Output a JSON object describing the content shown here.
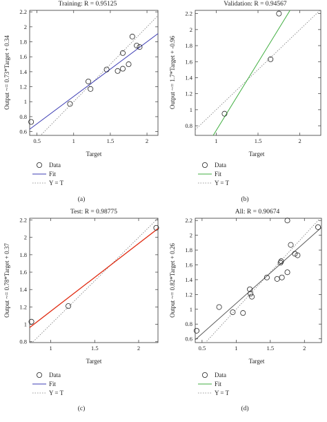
{
  "colors": {
    "training_fit": "#3b3bb3",
    "validation_fit": "#3fae3f",
    "test_fit": "#e02a10",
    "all_fit": "#555555",
    "identity": "#777777",
    "legend_fit_default": "#3b3bb3"
  },
  "chart_data": [
    {
      "id": "training",
      "type": "scatter",
      "caption": "(a)",
      "title": "Training: R = 0.95125",
      "xlabel": "Target",
      "ylabel": "Output ~= 0.73*Target + 0.34",
      "xlim": [
        0.4,
        2.15
      ],
      "ylim": [
        0.55,
        2.22
      ],
      "xticks": [
        0.5,
        1,
        1.5,
        2
      ],
      "xtick_labels": [
        "0.5",
        "1",
        "1.5",
        "2"
      ],
      "yticks": [
        0.6,
        0.8,
        1,
        1.2,
        1.4,
        1.6,
        1.8,
        2,
        2.2
      ],
      "ytick_labels": [
        "0.6",
        "0.8",
        "1",
        "1.2",
        "1.4",
        "1.6",
        "1.8",
        "2",
        "2.2"
      ],
      "fit": {
        "slope": 0.73,
        "intercept": 0.34,
        "color_key": "training_fit"
      },
      "points": [
        {
          "x": 0.42,
          "y": 0.73
        },
        {
          "x": 0.95,
          "y": 0.97
        },
        {
          "x": 1.2,
          "y": 1.27
        },
        {
          "x": 1.23,
          "y": 1.17
        },
        {
          "x": 1.45,
          "y": 1.43
        },
        {
          "x": 1.6,
          "y": 1.41
        },
        {
          "x": 1.67,
          "y": 1.44
        },
        {
          "x": 1.67,
          "y": 1.65
        },
        {
          "x": 1.75,
          "y": 1.5
        },
        {
          "x": 1.8,
          "y": 1.87
        },
        {
          "x": 1.86,
          "y": 1.75
        },
        {
          "x": 1.9,
          "y": 1.73
        }
      ],
      "legend": [
        {
          "symbol": "circle",
          "label": "Data"
        },
        {
          "symbol": "line",
          "color_key": "training_fit",
          "label": "Fit"
        },
        {
          "symbol": "dotted",
          "label": "Y = T"
        }
      ]
    },
    {
      "id": "validation",
      "type": "scatter",
      "caption": "(b)",
      "title": "Validation: R = 0.94567",
      "xlabel": "Target",
      "ylabel": "Output ~= 1.7*Target + -0.96",
      "xlim": [
        0.75,
        2.25
      ],
      "ylim": [
        0.68,
        2.24
      ],
      "xticks": [
        1,
        1.5,
        2
      ],
      "xtick_labels": [
        "1",
        "1.5",
        "2"
      ],
      "yticks": [
        0.8,
        1,
        1.2,
        1.4,
        1.6,
        1.8,
        2,
        2.2
      ],
      "ytick_labels": [
        "0.8",
        "1",
        "1.2",
        "1.4",
        "1.6",
        "1.8",
        "2",
        "2.2"
      ],
      "fit": {
        "slope": 1.7,
        "intercept": -0.96,
        "color_key": "validation_fit"
      },
      "points": [
        {
          "x": 1.1,
          "y": 0.95
        },
        {
          "x": 1.65,
          "y": 1.63
        },
        {
          "x": 1.75,
          "y": 2.2
        }
      ],
      "legend": [
        {
          "symbol": "circle",
          "label": "Data"
        },
        {
          "symbol": "line",
          "color_key": "validation_fit",
          "label": "Fit"
        },
        {
          "symbol": "dotted",
          "label": "Y = T"
        }
      ]
    },
    {
      "id": "test",
      "type": "scatter",
      "caption": "(c)",
      "title": "Test: R = 0.98775",
      "xlabel": "Target",
      "ylabel": "Output ~= 0.78*Target + 0.37",
      "xlim": [
        0.76,
        2.22
      ],
      "ylim": [
        0.79,
        2.22
      ],
      "xticks": [
        1,
        1.5,
        2
      ],
      "xtick_labels": [
        "1",
        "1.5",
        "2"
      ],
      "yticks": [
        0.8,
        1,
        1.2,
        1.4,
        1.6,
        1.8,
        2,
        2.2
      ],
      "ytick_labels": [
        "0.8",
        "1",
        "1.2",
        "1.4",
        "1.6",
        "1.8",
        "2",
        "2.2"
      ],
      "fit": {
        "slope": 0.78,
        "intercept": 0.37,
        "color_key": "test_fit"
      },
      "points": [
        {
          "x": 0.78,
          "y": 1.03
        },
        {
          "x": 1.2,
          "y": 1.21
        },
        {
          "x": 2.2,
          "y": 2.11
        }
      ],
      "legend": [
        {
          "symbol": "circle",
          "label": "Data"
        },
        {
          "symbol": "line",
          "color_key": "legend_fit_default",
          "label": "Fit"
        },
        {
          "symbol": "dotted",
          "label": "Y = T"
        }
      ]
    },
    {
      "id": "all",
      "type": "scatter",
      "caption": "(d)",
      "title": "All: R = 0.90674",
      "xlabel": "Target",
      "ylabel": "Output ~= 0.82*Target + 0.26",
      "xlim": [
        0.4,
        2.25
      ],
      "ylim": [
        0.55,
        2.23
      ],
      "xticks": [
        0.5,
        1,
        1.5,
        2
      ],
      "xtick_labels": [
        "0.5",
        "1",
        "1.5",
        "2"
      ],
      "yticks": [
        0.6,
        0.8,
        1,
        1.2,
        1.4,
        1.6,
        1.8,
        2,
        2.2
      ],
      "ytick_labels": [
        "0.6",
        "0.8",
        "1",
        "1.2",
        "1.4",
        "1.6",
        "1.8",
        "2",
        "2.2"
      ],
      "fit": {
        "slope": 0.82,
        "intercept": 0.26,
        "color_key": "all_fit"
      },
      "points": [
        {
          "x": 0.42,
          "y": 0.71
        },
        {
          "x": 0.75,
          "y": 1.03
        },
        {
          "x": 0.95,
          "y": 0.96
        },
        {
          "x": 1.1,
          "y": 0.95
        },
        {
          "x": 1.2,
          "y": 1.27
        },
        {
          "x": 1.21,
          "y": 1.21
        },
        {
          "x": 1.23,
          "y": 1.17
        },
        {
          "x": 1.45,
          "y": 1.43
        },
        {
          "x": 1.6,
          "y": 1.41
        },
        {
          "x": 1.65,
          "y": 1.63
        },
        {
          "x": 1.66,
          "y": 1.65
        },
        {
          "x": 1.67,
          "y": 1.43
        },
        {
          "x": 1.75,
          "y": 1.5
        },
        {
          "x": 1.75,
          "y": 2.2
        },
        {
          "x": 1.8,
          "y": 1.87
        },
        {
          "x": 1.86,
          "y": 1.75
        },
        {
          "x": 1.9,
          "y": 1.73
        },
        {
          "x": 2.2,
          "y": 2.11
        }
      ],
      "legend": [
        {
          "symbol": "circle",
          "label": "Data"
        },
        {
          "symbol": "line",
          "color_key": "validation_fit",
          "label": "Fit"
        },
        {
          "symbol": "dotted",
          "label": "Y = T"
        }
      ]
    }
  ]
}
